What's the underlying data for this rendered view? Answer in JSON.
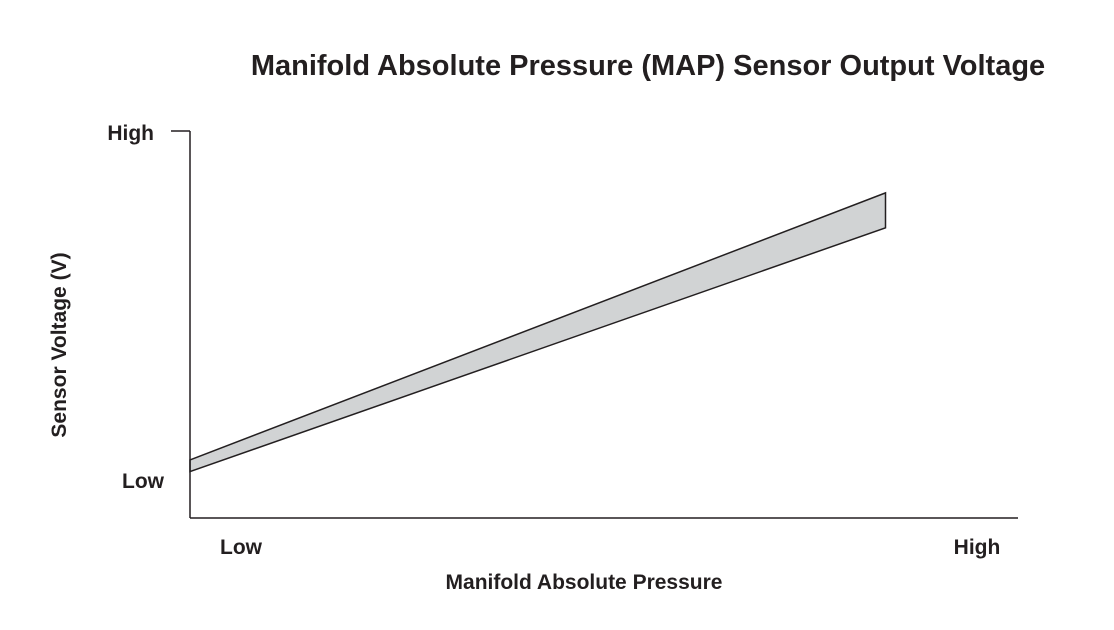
{
  "chart_data": {
    "type": "area",
    "title": "Manifold Absolute Pressure (MAP) Sensor Output Voltage",
    "xlabel": "Manifold Absolute Pressure",
    "ylabel": "Sensor Voltage (V)",
    "x_ticks": [
      "Low",
      "High"
    ],
    "y_ticks": [
      "Low",
      "High"
    ],
    "xlim": [
      0,
      1
    ],
    "ylim": [
      0,
      1
    ],
    "grid": false,
    "legend": "none",
    "series": [
      {
        "x": [
          0,
          0.84
        ],
        "upper": [
          0.15,
          0.84
        ],
        "lower": [
          0.12,
          0.75
        ],
        "fill": "#d1d3d4",
        "stroke": "#231f20"
      }
    ]
  }
}
